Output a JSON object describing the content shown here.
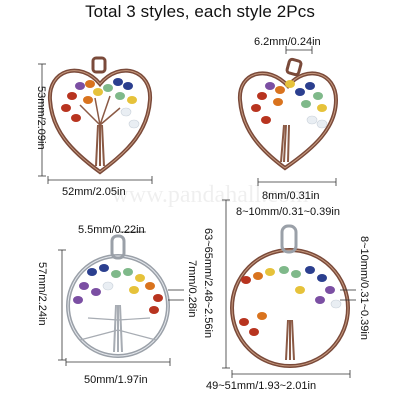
{
  "title": "Total 3 styles, each style 2Pcs",
  "watermark": "www.pandahall.com",
  "pendants": [
    {
      "shape": "heart",
      "metal": "red-copper",
      "height_label": "53mm/2.09in",
      "width_label": "52mm/2.05in"
    },
    {
      "shape": "heart",
      "metal": "red-copper",
      "loop_label": "6.2mm/0.24in",
      "thickness_label": "8mm/0.31in"
    },
    {
      "shape": "round",
      "metal": "silver",
      "loop_label": "5.5mm/0.22in",
      "height_label": "57mm/2.24in",
      "thickness_label": "7mm/0.28in",
      "width_label": "50mm/1.97in"
    },
    {
      "shape": "round",
      "metal": "red-copper",
      "loop_label": "8~10mm/0.31~0.39in",
      "height_label": "63~65mm/2.48~2.56in",
      "thickness_label": "8~10mm/0.31~0.39in",
      "width_label": "49~51mm/1.93~2.01in"
    }
  ],
  "colors": {
    "copper": "#7a4a3a",
    "silver": "#b8bcc4",
    "chip_red": "#b8341f",
    "chip_orange": "#d9731e",
    "chip_yellow": "#e6c23a",
    "chip_green": "#7fb98a",
    "chip_blue": "#2b3f8f",
    "chip_purple": "#7b4fa3",
    "chip_clear": "#e9eef3"
  }
}
